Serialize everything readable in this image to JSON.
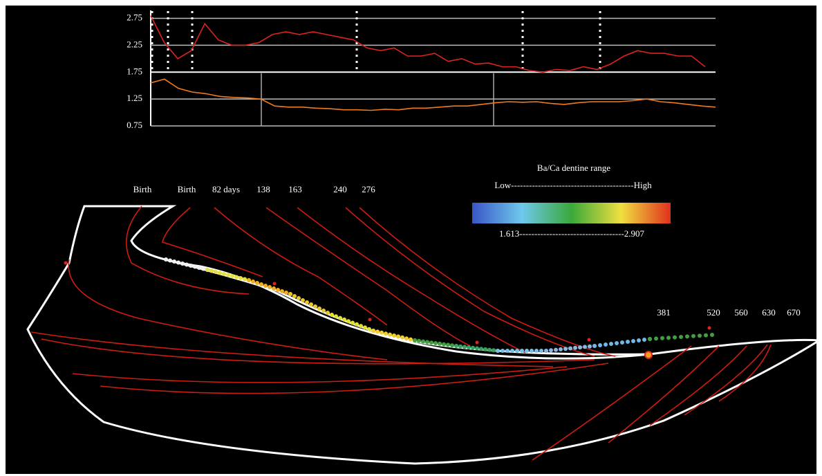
{
  "chart_data": {
    "type": "line",
    "ylim": [
      0.75,
      2.95
    ],
    "yticks": [
      0.75,
      1.25,
      1.75,
      2.25,
      2.75
    ],
    "grid": true,
    "series": [
      {
        "color": "#e0231c",
        "values": [
          2.8,
          2.3,
          2.0,
          2.15,
          2.65,
          2.35,
          2.25,
          2.25,
          2.3,
          2.45,
          2.5,
          2.45,
          2.5,
          2.45,
          2.4,
          2.35,
          2.2,
          2.15,
          2.2,
          2.05,
          2.05,
          2.1,
          1.95,
          2.0,
          1.9,
          1.92,
          1.85,
          1.85,
          1.78,
          1.75,
          1.8,
          1.78,
          1.85,
          1.8,
          1.9,
          2.05,
          2.15,
          2.1,
          2.1,
          2.05,
          2.05,
          1.85
        ]
      },
      {
        "color": "#f07b1f",
        "values": [
          1.55,
          1.62,
          1.45,
          1.38,
          1.35,
          1.3,
          1.28,
          1.27,
          1.25,
          1.12,
          1.1,
          1.1,
          1.08,
          1.07,
          1.05,
          1.05,
          1.04,
          1.06,
          1.05,
          1.08,
          1.08,
          1.1,
          1.12,
          1.12,
          1.15,
          1.18,
          1.2,
          1.19,
          1.2,
          1.17,
          1.15,
          1.18,
          1.2,
          1.2,
          1.2,
          1.22,
          1.25,
          1.2,
          1.18,
          1.15,
          1.12,
          1.1
        ]
      }
    ]
  },
  "diagram": {
    "stage_labels": [
      "Birth",
      "Birth",
      "82 days",
      "138",
      "163",
      "240",
      "276",
      "381",
      "520",
      "560",
      "630",
      "670"
    ],
    "legend_title": "Ba/Ca dentine range",
    "legend_scale": "Low-----------------------------------------High",
    "legend_range": "1.613-----------------------------------2.907"
  }
}
